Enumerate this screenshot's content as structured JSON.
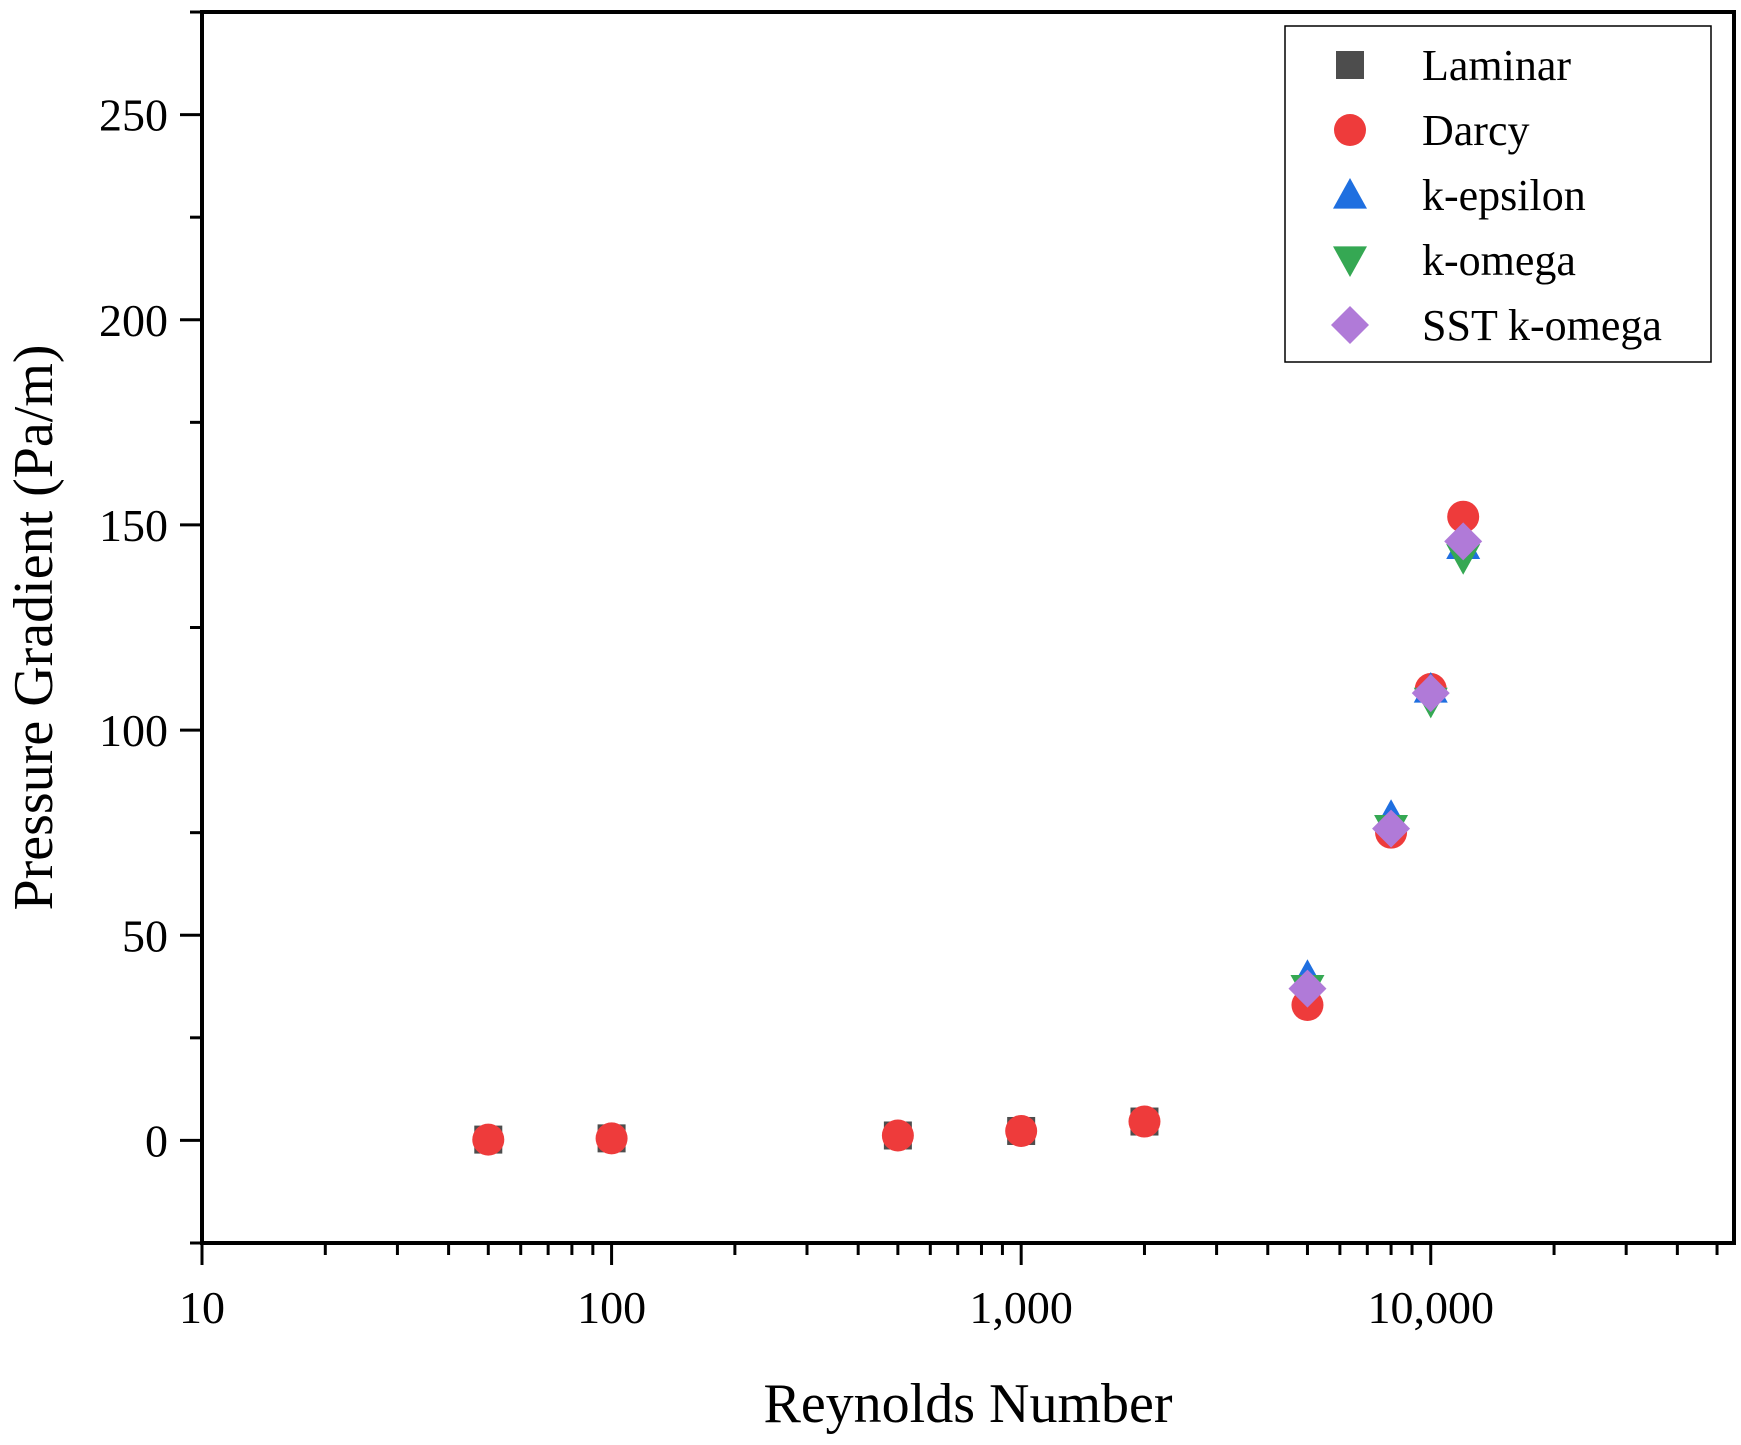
{
  "chart_data": {
    "type": "scatter",
    "title": "",
    "xlabel": "Reynolds Number",
    "ylabel": "Pressure Gradient (Pa/m)",
    "xscale": "log",
    "xlim": [
      10,
      55000
    ],
    "ylim": [
      -25,
      275
    ],
    "xticks": [
      10,
      100,
      1000,
      10000
    ],
    "xtick_labels": [
      "10",
      "100",
      "1,000",
      "10,000"
    ],
    "yticks": [
      0,
      50,
      100,
      150,
      200,
      250
    ],
    "ytick_labels": [
      "0",
      "50",
      "100",
      "150",
      "200",
      "250"
    ],
    "legend_position": "top-right",
    "series": [
      {
        "name": "Laminar",
        "marker": "square",
        "color": "#4d4d4d",
        "x": [
          50,
          100,
          500,
          1000,
          2000
        ],
        "y": [
          0.2,
          0.5,
          1.2,
          2.3,
          4.6
        ]
      },
      {
        "name": "Darcy",
        "marker": "circle",
        "color": "#ee3b3b",
        "x": [
          50,
          100,
          500,
          1000,
          2000,
          5000,
          8000,
          10000,
          12000
        ],
        "y": [
          0.2,
          0.5,
          1.2,
          2.3,
          4.6,
          33,
          75,
          110,
          152
        ]
      },
      {
        "name": "k-epsilon",
        "marker": "triangle-up",
        "color": "#1f6fe0",
        "x": [
          5000,
          8000,
          10000,
          12000
        ],
        "y": [
          40,
          79,
          110,
          145
        ]
      },
      {
        "name": "k-omega",
        "marker": "triangle-down",
        "color": "#35a853",
        "x": [
          5000,
          8000,
          10000,
          12000
        ],
        "y": [
          37,
          76,
          107,
          142
        ]
      },
      {
        "name": "SST k-omega",
        "marker": "diamond",
        "color": "#b07ad8",
        "x": [
          5000,
          8000,
          10000,
          12000
        ],
        "y": [
          37,
          76,
          109,
          146
        ]
      }
    ]
  }
}
